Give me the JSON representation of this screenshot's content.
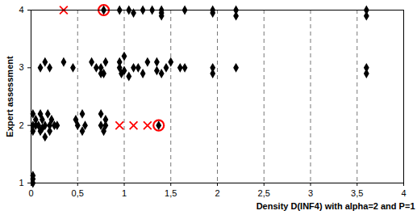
{
  "chart_data": {
    "type": "scatter",
    "x_label": "Density D(INF4) with alpha=2 and P=1",
    "y_label": "Expert assessment",
    "xlim": [
      0,
      4
    ],
    "ylim": [
      1,
      4
    ],
    "xticks": [
      0,
      {
        "value": 0.5,
        "label": "0,5"
      },
      1,
      {
        "value": 1.5,
        "label": "1,5"
      },
      2,
      {
        "value": 2.5,
        "label": "2,5"
      },
      3,
      {
        "value": 3.5,
        "label": "3,5"
      },
      4
    ],
    "yticks": [
      1,
      2,
      3,
      4
    ],
    "grid": "x",
    "series": [
      {
        "color": "#000000",
        "marker": "diamond",
        "x": [
          0.02,
          0.02,
          0.02,
          0.02,
          0.02,
          0.02,
          0.05,
          0.05,
          0.08,
          0.1,
          0.1,
          0.12,
          0.12,
          0.15,
          0.15,
          0.18,
          0.2,
          0.2,
          0.22,
          0.25,
          0.28,
          0.48,
          0.5,
          0.55,
          0.55,
          0.58,
          0.75,
          0.75,
          0.78,
          0.8,
          0.8,
          1.37,
          0.1,
          0.15,
          0.2,
          0.35,
          0.45,
          0.65,
          0.7,
          0.75,
          0.75,
          0.8,
          0.78,
          0.95,
          0.95,
          0.97,
          1.0,
          1.0,
          1.05,
          1.1,
          1.15,
          1.2,
          1.25,
          1.35,
          1.35,
          1.4,
          1.45,
          1.5,
          1.6,
          1.65,
          1.95,
          1.95,
          2.2,
          3.6,
          3.6,
          0.78,
          0.95,
          1.05,
          1.1,
          1.2,
          1.3,
          1.4,
          1.4,
          1.4,
          1.65,
          1.95,
          1.95,
          2.2,
          2.2,
          3.6,
          3.6
        ],
        "y": [
          1.0,
          1.07,
          1.13,
          2.2,
          2.0,
          1.9,
          2.1,
          2.0,
          2.0,
          1.9,
          2.2,
          2.1,
          1.95,
          2.0,
          1.8,
          2.2,
          2.0,
          1.9,
          2.1,
          2.0,
          2.0,
          2.1,
          2.0,
          1.9,
          2.2,
          2.0,
          2.2,
          2.0,
          1.9,
          2.1,
          2.0,
          2.0,
          3.0,
          3.1,
          3.0,
          3.1,
          3.0,
          3.1,
          3.0,
          3.0,
          2.9,
          3.1,
          2.9,
          3.0,
          3.1,
          2.9,
          3.2,
          2.95,
          2.85,
          3.0,
          3.0,
          2.9,
          3.1,
          3.1,
          2.95,
          2.9,
          3.0,
          3.1,
          3.0,
          3.0,
          3.0,
          2.9,
          3.0,
          3.0,
          2.9,
          4.0,
          4.0,
          4.0,
          3.95,
          4.0,
          4.0,
          4.0,
          3.95,
          3.9,
          4.0,
          4.0,
          3.95,
          4.0,
          3.9,
          4.0,
          3.9
        ]
      },
      {
        "color": "#ff0000",
        "marker": "x",
        "x": [
          0.35,
          0.95,
          1.1,
          1.25
        ],
        "y": [
          4.0,
          2.0,
          2.0,
          2.0
        ]
      },
      {
        "color": "#ff0000",
        "marker": "circle",
        "x": [
          0.78,
          1.37
        ],
        "y": [
          4.0,
          2.0
        ]
      }
    ]
  }
}
